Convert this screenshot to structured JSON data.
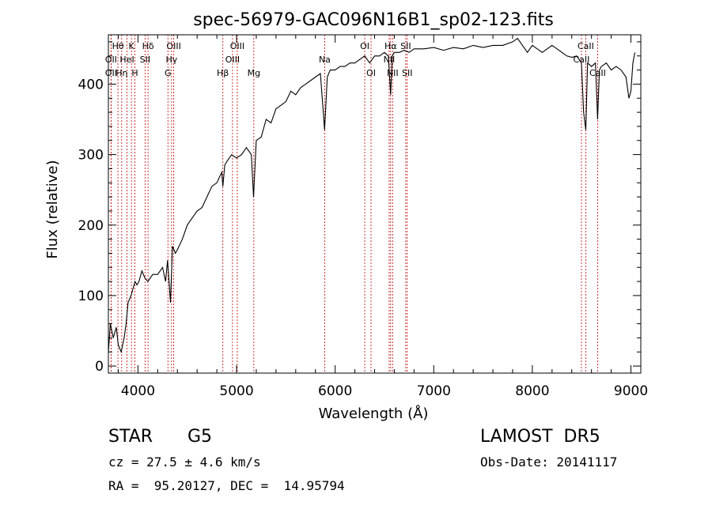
{
  "chart_data": {
    "type": "line",
    "title": "spec-56979-GAC096N16B1_sp02-123.fits",
    "xlabel": "Wavelength (Å)",
    "ylabel": "Flux (relative)",
    "xlim": [
      3700,
      9100
    ],
    "ylim": [
      -10,
      470
    ],
    "x_ticks": [
      4000,
      5000,
      6000,
      7000,
      8000,
      9000
    ],
    "y_ticks": [
      0,
      100,
      200,
      300,
      400
    ],
    "grid": false,
    "series": [
      {
        "x": [
          3700,
          3720,
          3750,
          3780,
          3800,
          3830,
          3860,
          3880,
          3900,
          3930,
          3950,
          3970,
          3990,
          4010,
          4040,
          4070,
          4100,
          4150,
          4200,
          4250,
          4280,
          4300,
          4330,
          4350,
          4380,
          4400,
          4450,
          4500,
          4550,
          4600,
          4650,
          4700,
          4750,
          4800,
          4850,
          4861,
          4880,
          4900,
          4950,
          5000,
          5050,
          5100,
          5150,
          5172,
          5200,
          5250,
          5300,
          5350,
          5400,
          5450,
          5500,
          5550,
          5600,
          5650,
          5700,
          5750,
          5800,
          5850,
          5893,
          5920,
          5950,
          6000,
          6050,
          6100,
          6150,
          6200,
          6250,
          6300,
          6350,
          6400,
          6450,
          6500,
          6540,
          6563,
          6580,
          6600,
          6650,
          6700,
          6750,
          6800,
          6900,
          7000,
          7100,
          7200,
          7300,
          7400,
          7500,
          7600,
          7700,
          7800,
          7850,
          7900,
          7950,
          8000,
          8050,
          8100,
          8150,
          8200,
          8250,
          8300,
          8350,
          8400,
          8450,
          8498,
          8520,
          8542,
          8560,
          8600,
          8640,
          8662,
          8680,
          8700,
          8750,
          8800,
          8850,
          8900,
          8950,
          8980,
          9000,
          9020,
          9040
        ],
        "y": [
          20,
          60,
          40,
          55,
          30,
          20,
          40,
          60,
          90,
          100,
          110,
          120,
          115,
          120,
          135,
          125,
          120,
          130,
          130,
          140,
          120,
          150,
          90,
          170,
          160,
          165,
          180,
          200,
          210,
          220,
          225,
          240,
          255,
          260,
          275,
          255,
          285,
          290,
          300,
          295,
          300,
          310,
          300,
          240,
          320,
          325,
          350,
          345,
          365,
          370,
          375,
          390,
          385,
          395,
          400,
          405,
          410,
          415,
          335,
          410,
          420,
          420,
          425,
          425,
          430,
          430,
          435,
          440,
          430,
          440,
          440,
          445,
          440,
          385,
          440,
          445,
          445,
          448,
          445,
          450,
          450,
          452,
          448,
          452,
          450,
          455,
          452,
          455,
          455,
          460,
          465,
          455,
          445,
          455,
          450,
          445,
          450,
          455,
          450,
          445,
          440,
          438,
          440,
          430,
          360,
          335,
          430,
          425,
          430,
          350,
          420,
          425,
          430,
          420,
          425,
          420,
          410,
          380,
          390,
          430,
          445
        ]
      }
    ],
    "lines": [
      {
        "label": "Hθ",
        "x": 3797,
        "row": 1
      },
      {
        "label": "OII",
        "x": 3727,
        "row": 2
      },
      {
        "label": "OII",
        "x": 3727,
        "row": 3
      },
      {
        "label": "Hη",
        "x": 3835,
        "row": 3
      },
      {
        "label": "K",
        "x": 3934,
        "row": 1
      },
      {
        "label": "HeI",
        "x": 3889,
        "row": 2
      },
      {
        "label": "H",
        "x": 3969,
        "row": 3
      },
      {
        "label": "Hδ",
        "x": 4102,
        "row": 1
      },
      {
        "label": "SII",
        "x": 4072,
        "row": 2
      },
      {
        "label": "OIII",
        "x": 4363,
        "row": 1
      },
      {
        "label": "Hγ",
        "x": 4341,
        "row": 2
      },
      {
        "label": "G",
        "x": 4304,
        "row": 3
      },
      {
        "label": "OIII",
        "x": 5007,
        "row": 1
      },
      {
        "label": "OIII",
        "x": 4959,
        "row": 2
      },
      {
        "label": "Hβ",
        "x": 4861,
        "row": 3
      },
      {
        "label": "Mg",
        "x": 5175,
        "row": 3
      },
      {
        "label": "Na",
        "x": 5894,
        "row": 2
      },
      {
        "label": "OI",
        "x": 6300,
        "row": 1
      },
      {
        "label": "OI",
        "x": 6364,
        "row": 3
      },
      {
        "label": "Hα",
        "x": 6563,
        "row": 1
      },
      {
        "label": "SII",
        "x": 6716,
        "row": 1
      },
      {
        "label": "NII",
        "x": 6548,
        "row": 2
      },
      {
        "label": "NII",
        "x": 6583,
        "row": 3
      },
      {
        "label": "SII",
        "x": 6731,
        "row": 3
      },
      {
        "label": "CaII",
        "x": 8542,
        "row": 1
      },
      {
        "label": "CaII",
        "x": 8498,
        "row": 2
      },
      {
        "label": "CaII",
        "x": 8662,
        "row": 3
      }
    ]
  },
  "info": {
    "object_class": "STAR",
    "subclass": "G5",
    "survey": "LAMOST  DR5",
    "redshift": "cz = 27.5 ± 4.6 km/s",
    "obs_date": "Obs-Date: 20141117",
    "coords": "RA =  95.20127, DEC =  14.95794"
  },
  "colors": {
    "spectrum": "#000000",
    "line_markers": "#c00000",
    "background": "#ffffff"
  }
}
